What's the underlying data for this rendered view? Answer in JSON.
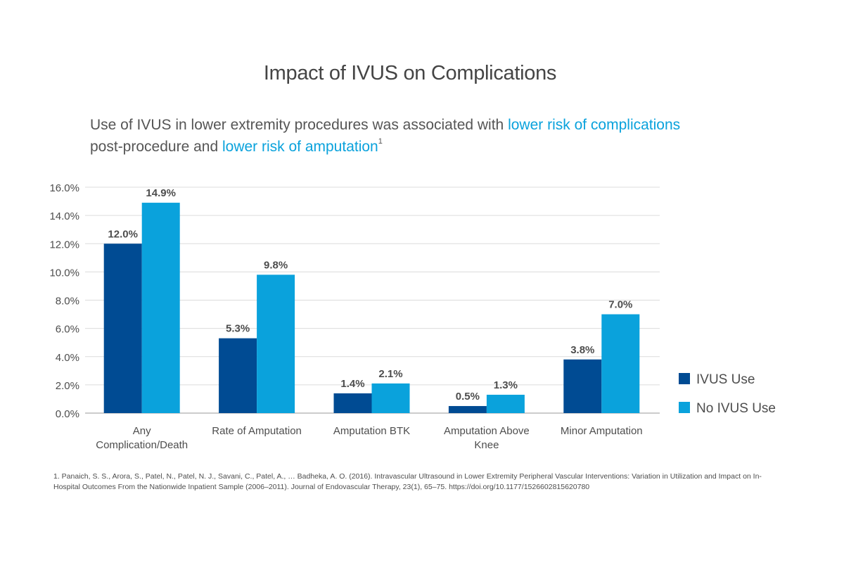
{
  "page": {
    "subtitle_part1": "Use of IVUS in lower extremity procedures was associated with ",
    "subtitle_hl1": "lower risk of complications",
    "subtitle_part2": "post-procedure and ",
    "subtitle_hl2": "lower risk of amputation",
    "subtitle_sup": "1",
    "footnote": "1. Panaich, S. S., Arora, S., Patel, N., Patel, N. J., Savani, C., Patel, A., … Badheka, A. O. (2016). Intravascular Ultrasound in Lower Extremity Peripheral Vascular Interventions: Variation in Utilization and Impact on In-Hospital Outcomes From the Nationwide Inpatient Sample (2006–2011). Journal of Endovascular Therapy, 23(1), 65–75. https://doi.org/10.1177/1526602815620780",
    "highlight_color": "#0aa2dc"
  },
  "chart_data": {
    "type": "bar",
    "title": "Impact of IVUS on Complications",
    "xlabel": "",
    "ylabel": "",
    "categories": [
      "Any Complication/Death",
      "Rate of Amputation",
      "Amputation BTK",
      "Amputation Above Knee",
      "Minor Amputation"
    ],
    "category_lines": [
      [
        "Any",
        "Complication/Death"
      ],
      [
        "Rate of Amputation"
      ],
      [
        "Amputation BTK"
      ],
      [
        "Amputation Above",
        "Knee"
      ],
      [
        "Minor Amputation"
      ]
    ],
    "series": [
      {
        "name": "IVUS Use",
        "values": [
          12.0,
          5.3,
          1.4,
          0.5,
          3.8
        ],
        "labels": [
          "12.0%",
          "5.3%",
          "1.4%",
          "0.5%",
          "3.8%"
        ],
        "color": "#004b93"
      },
      {
        "name": "No IVUS Use",
        "values": [
          14.9,
          9.8,
          2.1,
          1.3,
          7.0
        ],
        "labels": [
          "14.9%",
          "9.8%",
          "2.1%",
          "1.3%",
          "7.0%"
        ],
        "color": "#0aa2dc"
      }
    ],
    "ylim": [
      0,
      16
    ],
    "yticks": [
      0,
      2,
      4,
      6,
      8,
      10,
      12,
      14,
      16
    ],
    "ytick_labels": [
      "0.0%",
      "2.0%",
      "4.0%",
      "6.0%",
      "8.0%",
      "10.0%",
      "12.0%",
      "14.0%",
      "16.0%"
    ],
    "grid": true,
    "legend_position": "right"
  }
}
